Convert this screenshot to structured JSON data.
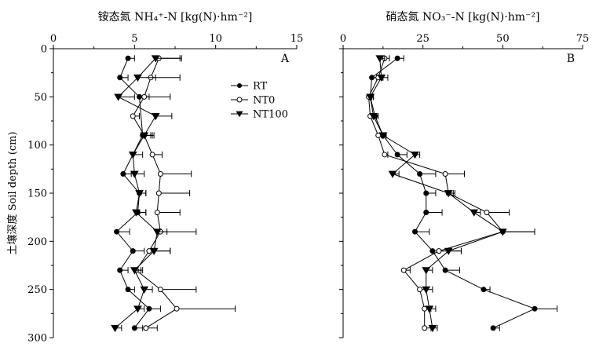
{
  "chart_data": [
    {
      "type": "line",
      "panel_label": "A",
      "title": "铵态氮 NH₄⁺-N [kg(N)·hm⁻²]",
      "xlabel": "铵态氮 NH₄⁺-N [kg(N)·hm⁻²]",
      "ylabel": "土壤深度 Soil depth (cm)",
      "x_axis_position": "top",
      "y_inverted": true,
      "xlim": [
        0,
        15
      ],
      "ylim": [
        0,
        300
      ],
      "x_ticks": [
        0,
        5,
        10,
        15
      ],
      "y_ticks": [
        0,
        50,
        100,
        150,
        200,
        250,
        300
      ],
      "grid": false,
      "legend_position": "top-right",
      "legend": [
        "RT",
        "NT0",
        "NT100"
      ],
      "series": [
        {
          "name": "RT",
          "marker": "filled-circle",
          "points": [
            {
              "y": 10,
              "x": 4.6,
              "err": 0.4
            },
            {
              "y": 30,
              "x": 4.1,
              "err": 0.5
            },
            {
              "y": 50,
              "x": 5.3,
              "err": 0.6
            },
            {
              "y": 90,
              "x": 5.5,
              "err": 0.7
            },
            {
              "y": 130,
              "x": 4.3,
              "err": 0.5
            },
            {
              "y": 150,
              "x": 5.3,
              "err": 0.4
            },
            {
              "y": 170,
              "x": 5.2,
              "err": 0.5
            },
            {
              "y": 190,
              "x": 3.9,
              "err": 0.8
            },
            {
              "y": 210,
              "x": 4.9,
              "err": 0.7
            },
            {
              "y": 230,
              "x": 4.1,
              "err": 0.5
            },
            {
              "y": 250,
              "x": 4.6,
              "err": 0.4
            },
            {
              "y": 270,
              "x": 5.9,
              "err": 0.7
            },
            {
              "y": 290,
              "x": 5.0,
              "err": 0.5
            }
          ]
        },
        {
          "name": "NT0",
          "marker": "open-circle",
          "points": [
            {
              "y": 10,
              "x": 6.5,
              "err": 1.4
            },
            {
              "y": 30,
              "x": 6.0,
              "err": 1.8
            },
            {
              "y": 50,
              "x": 5.6,
              "err": 1.6
            },
            {
              "y": 70,
              "x": 4.9,
              "err": 0.4
            },
            {
              "y": 90,
              "x": 5.6,
              "err": 0.5
            },
            {
              "y": 110,
              "x": 6.1,
              "err": 0.6
            },
            {
              "y": 130,
              "x": 6.6,
              "err": 1.9
            },
            {
              "y": 150,
              "x": 6.5,
              "err": 1.9
            },
            {
              "y": 170,
              "x": 6.4,
              "err": 1.4
            },
            {
              "y": 190,
              "x": 6.6,
              "err": 2.2
            },
            {
              "y": 210,
              "x": 5.9,
              "err": 1.3
            },
            {
              "y": 230,
              "x": 5.1,
              "err": 0.4
            },
            {
              "y": 250,
              "x": 6.6,
              "err": 2.2
            },
            {
              "y": 270,
              "x": 7.6,
              "err": 3.6
            },
            {
              "y": 290,
              "x": 5.7,
              "err": 0.7
            }
          ]
        },
        {
          "name": "NT100",
          "marker": "filled-triangle-down",
          "points": [
            {
              "y": 10,
              "x": 6.3,
              "err": 1.5
            },
            {
              "y": 30,
              "x": 5.2,
              "err": 1.1
            },
            {
              "y": 50,
              "x": 4.0,
              "err": 1.0
            },
            {
              "y": 70,
              "x": 6.3,
              "err": 1.0
            },
            {
              "y": 90,
              "x": 5.6,
              "err": 0.4
            },
            {
              "y": 110,
              "x": 4.9,
              "err": 0.6
            },
            {
              "y": 130,
              "x": 5.0,
              "err": 0.6
            },
            {
              "y": 150,
              "x": 5.3,
              "err": 0.4
            },
            {
              "y": 170,
              "x": 5.1,
              "err": 0.6
            },
            {
              "y": 190,
              "x": 6.4,
              "err": 0.6
            },
            {
              "y": 210,
              "x": 6.2,
              "err": 1.0
            },
            {
              "y": 230,
              "x": 5.0,
              "err": 0.4
            },
            {
              "y": 250,
              "x": 5.6,
              "err": 0.5
            },
            {
              "y": 270,
              "x": 5.2,
              "err": 0.4
            },
            {
              "y": 290,
              "x": 3.8,
              "err": 0.4
            }
          ]
        }
      ]
    },
    {
      "type": "line",
      "panel_label": "B",
      "title": "硝态氮 NO₃⁻-N [kg(N)·hm⁻²]",
      "xlabel": "硝态氮 NO₃⁻-N [kg(N)·hm⁻²]",
      "x_axis_position": "top",
      "y_inverted": true,
      "xlim": [
        0,
        75
      ],
      "ylim": [
        0,
        300
      ],
      "x_ticks": [
        0,
        25,
        50,
        75
      ],
      "grid": false,
      "series": [
        {
          "name": "RT",
          "marker": "filled-circle",
          "points": [
            {
              "y": 10,
              "x": 17.0,
              "err": 2.0
            },
            {
              "y": 30,
              "x": 9.0,
              "err": 1.5
            },
            {
              "y": 50,
              "x": 8.5,
              "err": 1.0
            },
            {
              "y": 70,
              "x": 10.0,
              "err": 1.0
            },
            {
              "y": 90,
              "x": 12.5,
              "err": 1.0
            },
            {
              "y": 110,
              "x": 17.0,
              "err": 3.0
            },
            {
              "y": 130,
              "x": 24.0,
              "err": 5.0
            },
            {
              "y": 150,
              "x": 26.0,
              "err": 3.0
            },
            {
              "y": 170,
              "x": 26.0,
              "err": 5.0
            },
            {
              "y": 190,
              "x": 22.5,
              "err": 4.5
            },
            {
              "y": 210,
              "x": 28.0,
              "err": 5.0
            },
            {
              "y": 230,
              "x": 32.0,
              "err": 4.5
            },
            {
              "y": 250,
              "x": 44.0,
              "err": 2.0
            },
            {
              "y": 270,
              "x": 60.0,
              "err": 7.0
            },
            {
              "y": 290,
              "x": 47.0,
              "err": 2.0
            }
          ]
        },
        {
          "name": "NT0",
          "marker": "open-circle",
          "points": [
            {
              "y": 10,
              "x": 13.0,
              "err": 1.5
            },
            {
              "y": 30,
              "x": 11.0,
              "err": 1.5
            },
            {
              "y": 50,
              "x": 8.0,
              "err": 1.0
            },
            {
              "y": 70,
              "x": 8.5,
              "err": 1.0
            },
            {
              "y": 90,
              "x": 11.0,
              "err": 1.0
            },
            {
              "y": 110,
              "x": 13.0,
              "err": 1.0
            },
            {
              "y": 130,
              "x": 32.0,
              "err": 6.0
            },
            {
              "y": 150,
              "x": 33.0,
              "err": 2.0
            },
            {
              "y": 170,
              "x": 45.0,
              "err": 7.0
            },
            {
              "y": 190,
              "x": 50.0,
              "err": 10.0
            },
            {
              "y": 210,
              "x": 30.0,
              "err": 7.0
            },
            {
              "y": 230,
              "x": 19.0,
              "err": 2.0
            },
            {
              "y": 250,
              "x": 24.0,
              "err": 2.0
            },
            {
              "y": 270,
              "x": 25.5,
              "err": 2.0
            },
            {
              "y": 290,
              "x": 25.5,
              "err": 2.0
            }
          ]
        },
        {
          "name": "NT100",
          "marker": "filled-triangle-down",
          "points": [
            {
              "y": 10,
              "x": 11.5,
              "err": 1.5
            },
            {
              "y": 30,
              "x": 12.0,
              "err": 2.0
            },
            {
              "y": 50,
              "x": 8.5,
              "err": 1.0
            },
            {
              "y": 70,
              "x": 9.5,
              "err": 1.0
            },
            {
              "y": 90,
              "x": 12.5,
              "err": 1.0
            },
            {
              "y": 110,
              "x": 22.5,
              "err": 1.5
            },
            {
              "y": 130,
              "x": 15.5,
              "err": 2.0
            },
            {
              "y": 150,
              "x": 33.0,
              "err": 1.5
            },
            {
              "y": 170,
              "x": 41.0,
              "err": 2.0
            },
            {
              "y": 190,
              "x": 50.0,
              "err": 10.0
            },
            {
              "y": 210,
              "x": 33.0,
              "err": 4.0
            },
            {
              "y": 230,
              "x": 26.0,
              "err": 2.0
            },
            {
              "y": 250,
              "x": 26.0,
              "err": 2.0
            },
            {
              "y": 270,
              "x": 27.0,
              "err": 2.0
            },
            {
              "y": 290,
              "x": 28.0,
              "err": 1.5
            }
          ]
        }
      ]
    }
  ]
}
